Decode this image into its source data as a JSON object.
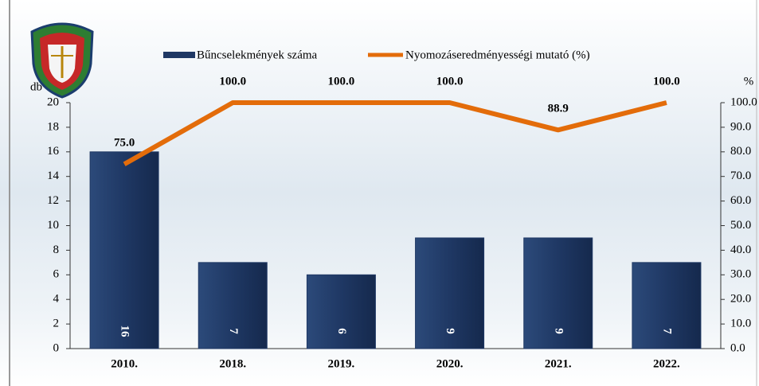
{
  "chart_data": {
    "type": "bar-line",
    "y_label": "db",
    "y2_label": "%",
    "categories": [
      "2010.",
      "2018.",
      "2019.",
      "2020.",
      "2021.",
      "2022."
    ],
    "series": [
      {
        "name": "Bűncselekmények száma",
        "type": "bar",
        "color": "#1f3864",
        "values": [
          16,
          7,
          6,
          9,
          9,
          7
        ]
      },
      {
        "name": "Nyomozáseredményességi mutató (%)",
        "type": "line",
        "axis": "y2",
        "color": "#e36c0a",
        "values": [
          75.0,
          100.0,
          100.0,
          100.0,
          88.9,
          100.0
        ],
        "value_labels": [
          "75.0",
          "100.0",
          "100.0",
          "100.0",
          "88.9",
          "100.0"
        ]
      }
    ],
    "ylim": [
      0,
      20
    ],
    "yticks": [
      0,
      2,
      4,
      6,
      8,
      10,
      12,
      14,
      16,
      18,
      20
    ],
    "y2lim": [
      0,
      100
    ],
    "y2ticks": [
      {
        "value": 0,
        "label": "0.0"
      },
      {
        "value": 10,
        "label": "10.0"
      },
      {
        "value": 20,
        "label": "20.0"
      },
      {
        "value": 30,
        "label": "30.0"
      },
      {
        "value": 40,
        "label": "40.0"
      },
      {
        "value": 50,
        "label": "50.0"
      },
      {
        "value": 60,
        "label": "60.0"
      },
      {
        "value": 70,
        "label": "70.0"
      },
      {
        "value": 80,
        "label": "80.0"
      },
      {
        "value": 90,
        "label": "90.0"
      },
      {
        "value": 100,
        "label": "100.0"
      }
    ]
  }
}
